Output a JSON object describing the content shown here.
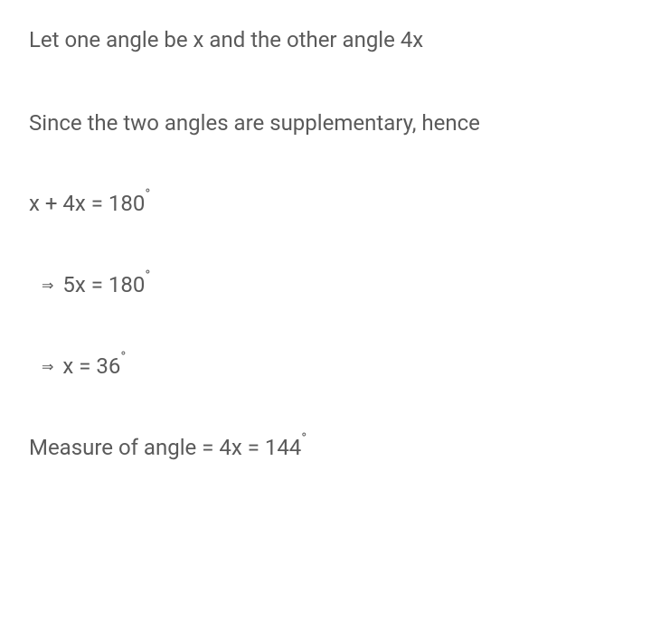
{
  "text_color": "#5a5a5a",
  "background_color": "#ffffff",
  "font_size": 24,
  "lines": {
    "line1": "Let one angle be x and the other angle 4x",
    "line2": "Since the two angles are supplementary, hence",
    "eq1": "x + 4x = 180",
    "eq2": "5x = 180",
    "eq3": "x = 36",
    "conclusion": "Measure of angle = 4x = 144"
  },
  "symbols": {
    "arrow": "⇒",
    "degree": "°"
  }
}
